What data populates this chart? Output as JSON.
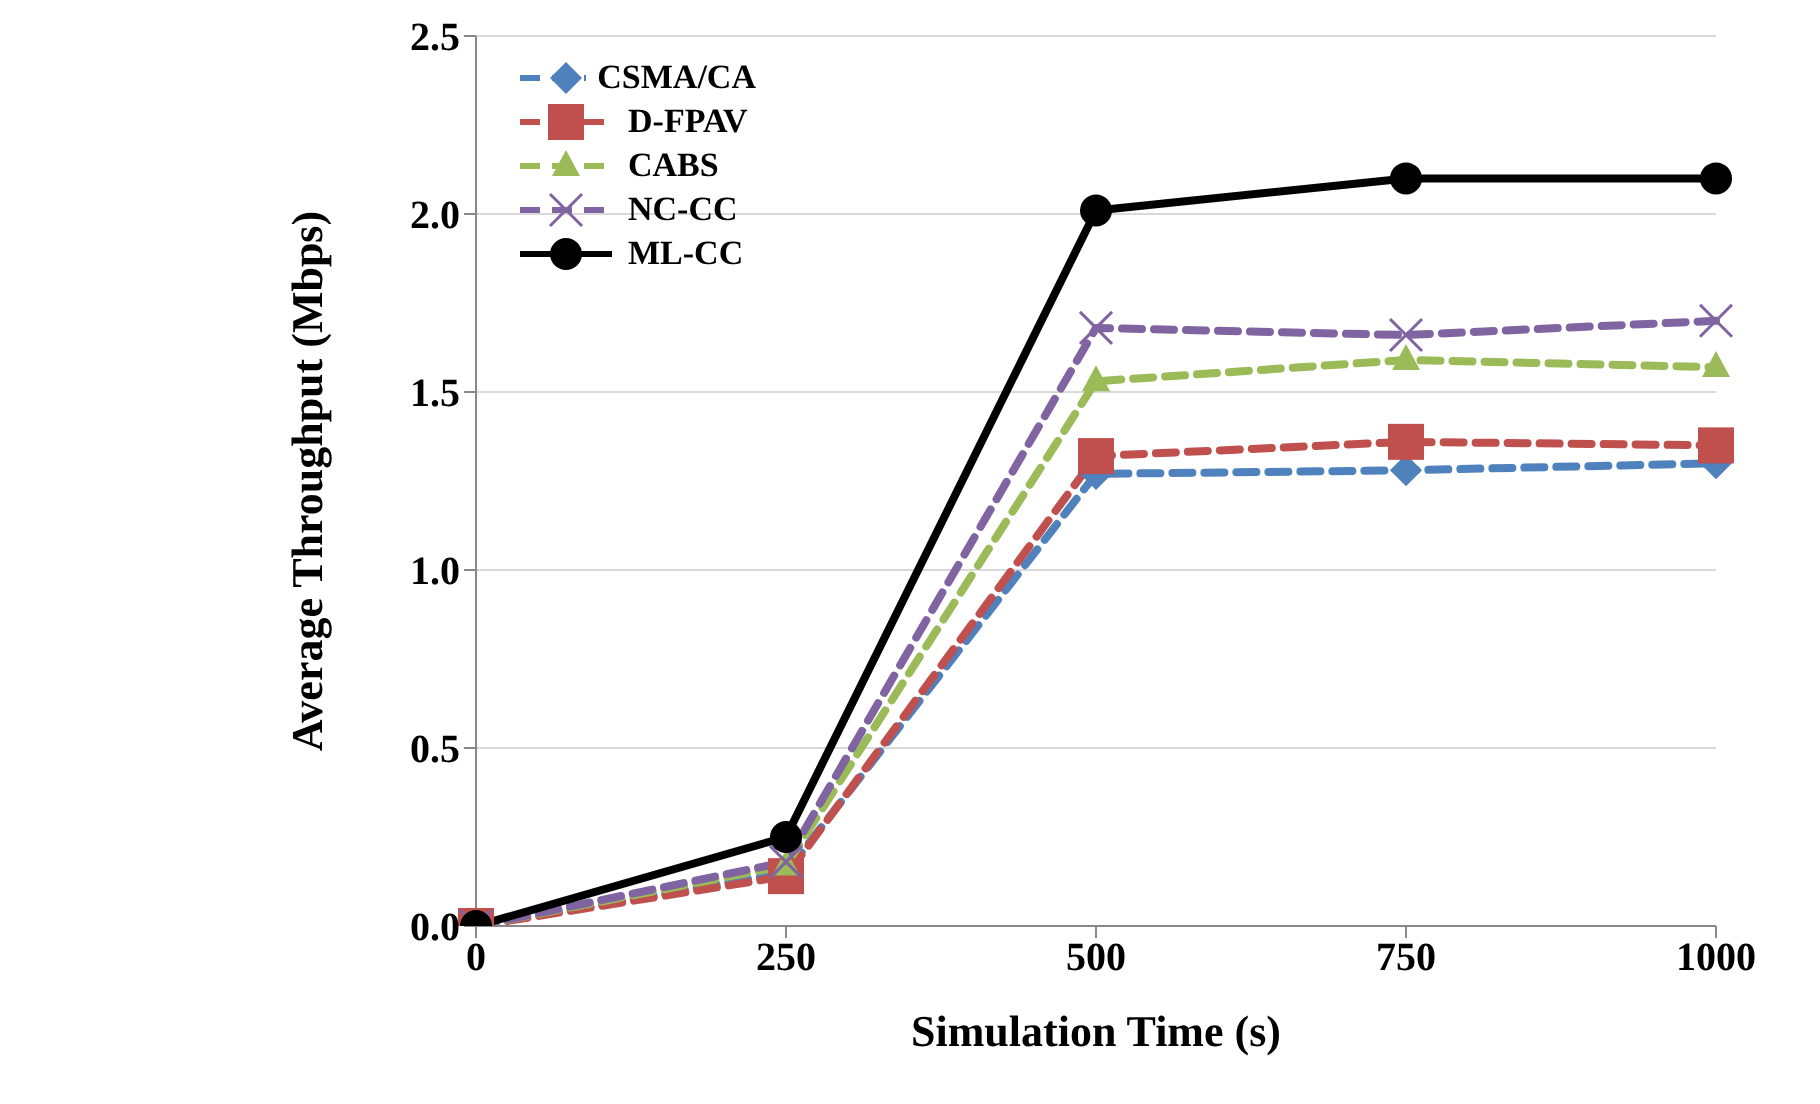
{
  "chart_data": {
    "type": "line",
    "xlabel": "Simulation Time (s)",
    "ylabel": "Average Throughput (Mbps)",
    "categories": [
      "0",
      "250",
      "500",
      "750",
      "1000"
    ],
    "ylim": [
      0,
      2.5
    ],
    "yticks": [
      {
        "value": 0,
        "label": "0.0"
      },
      {
        "value": 0.5,
        "label": "0.5"
      },
      {
        "value": 1,
        "label": "1.0"
      },
      {
        "value": 1.5,
        "label": "1.5"
      },
      {
        "value": 2,
        "label": "2.0"
      },
      {
        "value": 2.5,
        "label": "2.5"
      }
    ],
    "grid": "y",
    "legend": "top left",
    "series": [
      {
        "name": "CSMA/CA",
        "color": "#4f81bd",
        "marker": "diamond",
        "line_style": "dashed",
        "values": [
          0,
          0.15,
          1.27,
          1.28,
          1.3
        ]
      },
      {
        "name": "D-FPAV",
        "color": "#c0504d",
        "marker": "square",
        "line_style": "dashed",
        "values": [
          0,
          0.14,
          1.32,
          1.36,
          1.35
        ]
      },
      {
        "name": "CABS",
        "color": "#9bbb59",
        "marker": "triangle",
        "line_style": "dashed",
        "values": [
          0,
          0.17,
          1.53,
          1.59,
          1.57
        ]
      },
      {
        "name": "NC-CC",
        "color": "#8064a2",
        "marker": "cross",
        "line_style": "dashed",
        "values": [
          0,
          0.18,
          1.68,
          1.66,
          1.7
        ]
      },
      {
        "name": "ML-CC",
        "color": "#000000",
        "marker": "circle",
        "line_style": "solid",
        "values": [
          0,
          0.25,
          2.01,
          2.1,
          2.1
        ]
      }
    ]
  }
}
